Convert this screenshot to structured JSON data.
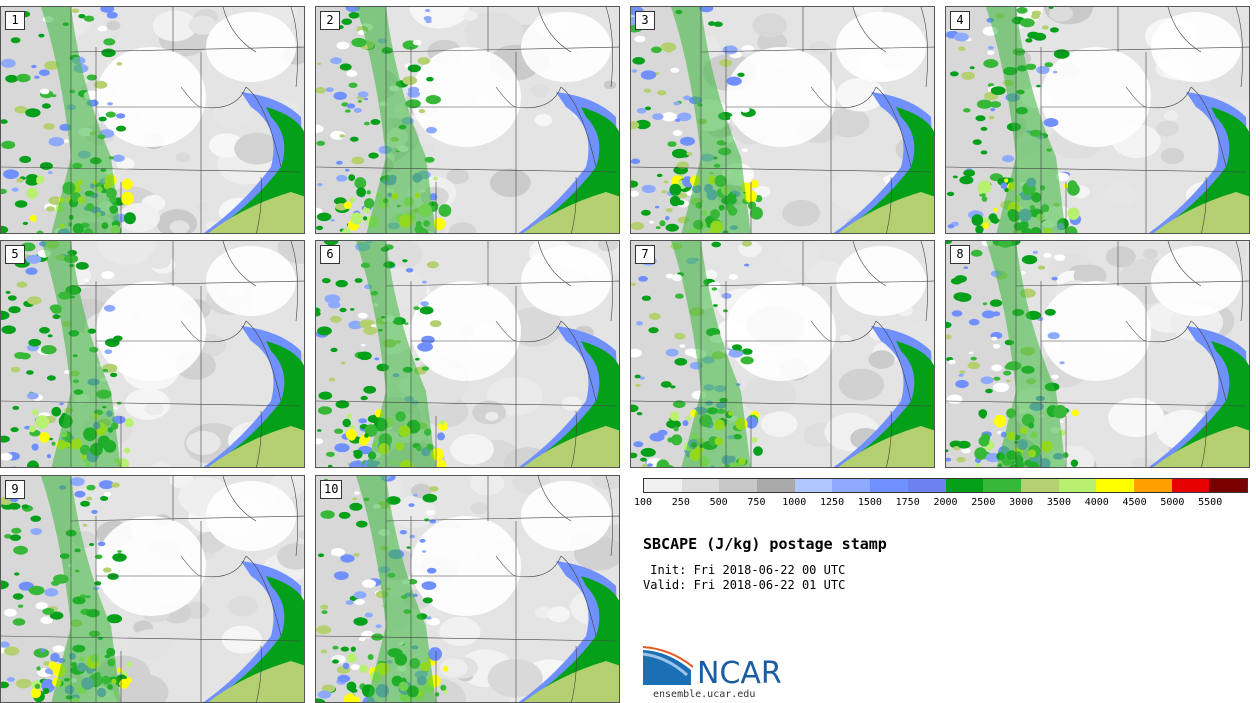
{
  "panels": [
    {
      "label": "1"
    },
    {
      "label": "2"
    },
    {
      "label": "3"
    },
    {
      "label": "4"
    },
    {
      "label": "5"
    },
    {
      "label": "6"
    },
    {
      "label": "7"
    },
    {
      "label": "8"
    },
    {
      "label": "9"
    },
    {
      "label": "10"
    }
  ],
  "colorbar": {
    "colors": [
      "#f0f0f0",
      "#dddddd",
      "#c8c8c8",
      "#aaaaaa",
      "#b0c8ff",
      "#8eaaff",
      "#7090ff",
      "#6e82ee",
      "#04a01a",
      "#38b838",
      "#b4d070",
      "#b8f070",
      "#ffff00",
      "#ffa000",
      "#e60000",
      "#7a0000"
    ],
    "tick_labels": [
      "100",
      "250",
      "500",
      "750",
      "1000",
      "1250",
      "1500",
      "1750",
      "2000",
      "2500",
      "3000",
      "3500",
      "4000",
      "4500",
      "5000",
      "5500"
    ]
  },
  "title": "SBCAPE (J/kg) postage stamp",
  "init_line": " Init: Fri 2018-06-22 00 UTC",
  "valid_line": "Valid: Fri 2018-06-22 01 UTC",
  "logo": {
    "brand": "NCAR",
    "site": "ensemble.ucar.edu"
  }
}
